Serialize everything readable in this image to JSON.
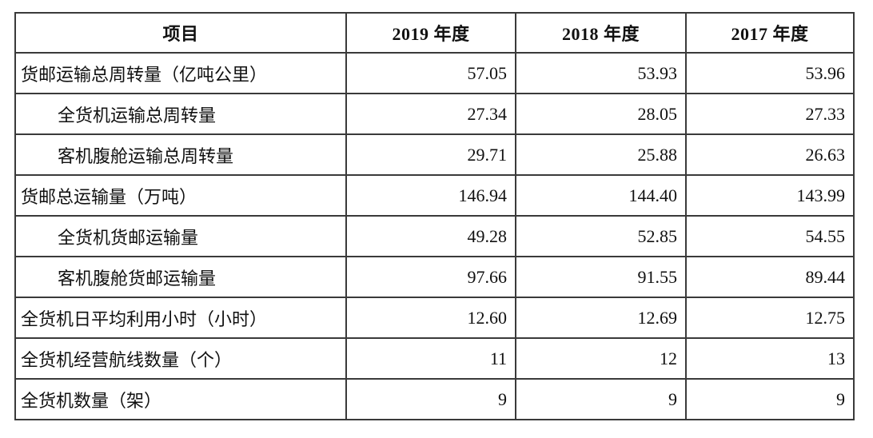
{
  "table": {
    "columns": [
      "项目",
      "2019 年度",
      "2018 年度",
      "2017 年度"
    ],
    "rows": [
      {
        "label": "货邮运输总周转量（亿吨公里）",
        "indent": false,
        "values": [
          "57.05",
          "53.93",
          "53.96"
        ]
      },
      {
        "label": "全货机运输总周转量",
        "indent": true,
        "values": [
          "27.34",
          "28.05",
          "27.33"
        ]
      },
      {
        "label": "客机腹舱运输总周转量",
        "indent": true,
        "values": [
          "29.71",
          "25.88",
          "26.63"
        ]
      },
      {
        "label": "货邮总运输量（万吨）",
        "indent": false,
        "values": [
          "146.94",
          "144.40",
          "143.99"
        ]
      },
      {
        "label": "全货机货邮运输量",
        "indent": true,
        "values": [
          "49.28",
          "52.85",
          "54.55"
        ]
      },
      {
        "label": "客机腹舱货邮运输量",
        "indent": true,
        "values": [
          "97.66",
          "91.55",
          "89.44"
        ]
      },
      {
        "label": "全货机日平均利用小时（小时）",
        "indent": false,
        "values": [
          "12.60",
          "12.69",
          "12.75"
        ]
      },
      {
        "label": "全货机经营航线数量（个）",
        "indent": false,
        "values": [
          "11",
          "12",
          "13"
        ]
      },
      {
        "label": "全货机数量（架）",
        "indent": false,
        "values": [
          "9",
          "9",
          "9"
        ]
      }
    ],
    "colors": {
      "border": "#3a3a3a",
      "text": "#111111",
      "background": "#ffffff"
    }
  }
}
